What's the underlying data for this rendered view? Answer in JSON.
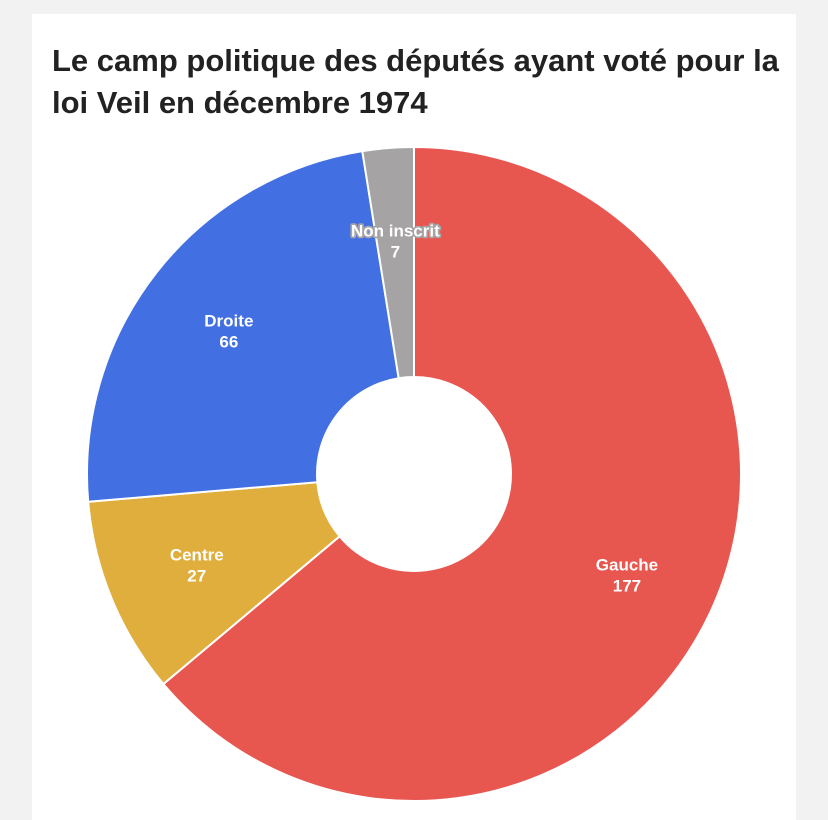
{
  "chart_data": {
    "type": "pie",
    "variant": "donut",
    "title": "Le camp politique des députés ayant voté pour la loi Veil en décembre 1974",
    "start": "top, clockwise",
    "labels": [
      "Gauche",
      "Centre",
      "Droite",
      "Non inscrit"
    ],
    "values": [
      177,
      27,
      66,
      7
    ],
    "colors": [
      "#e85650",
      "#e0ae3c",
      "#4270e2",
      "#a5a3a4"
    ]
  }
}
